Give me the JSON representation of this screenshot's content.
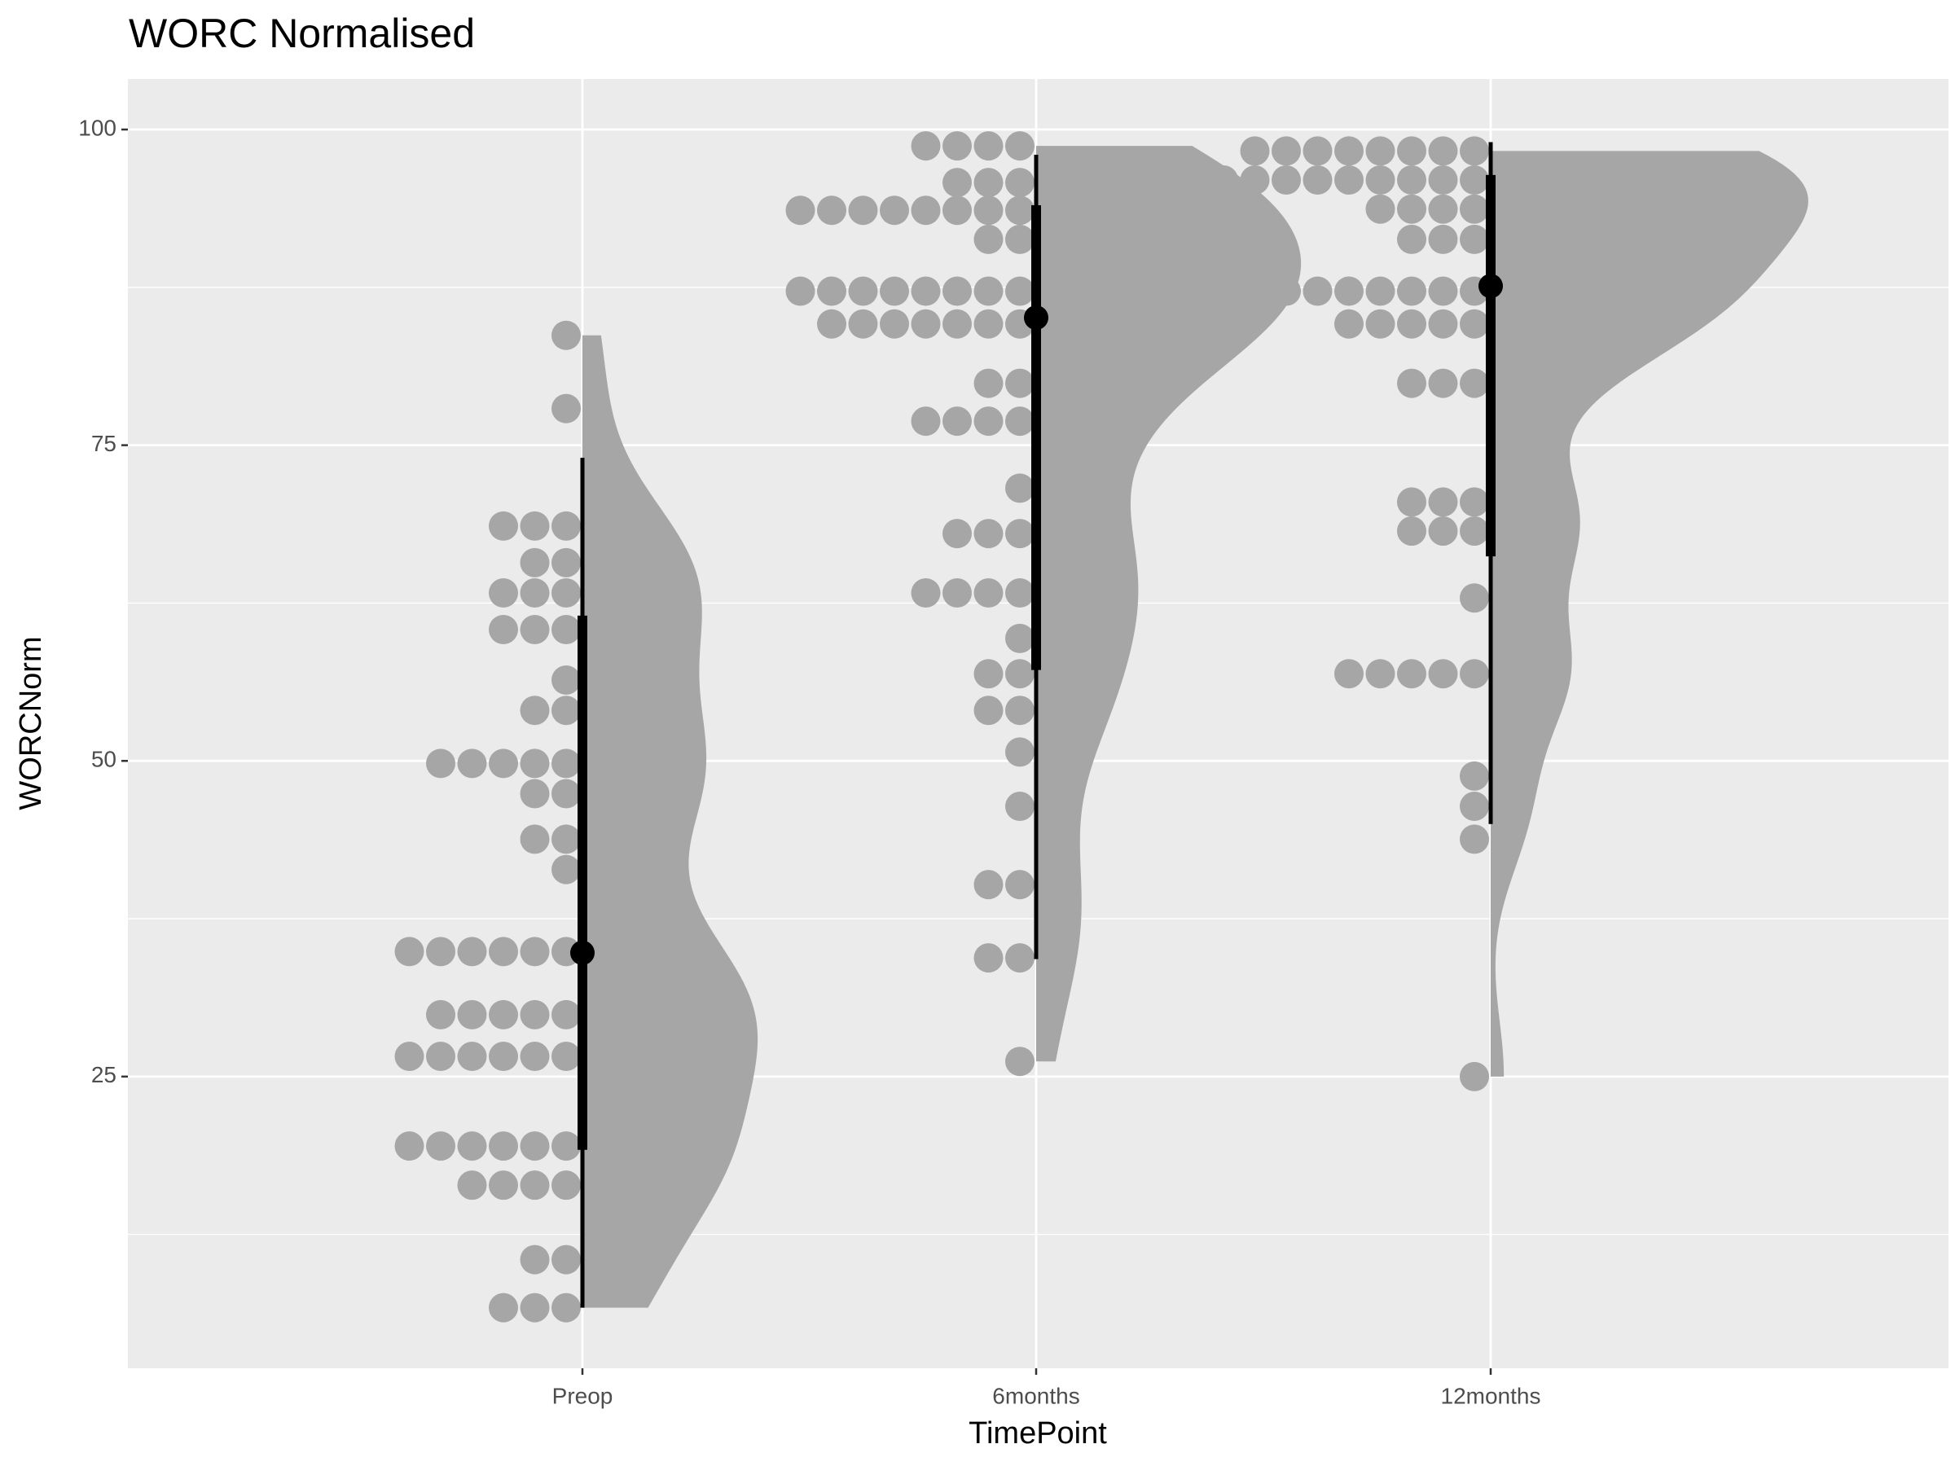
{
  "chart_data": {
    "type": "raincloud",
    "title": "WORC Normalised",
    "x_label": "TimePoint",
    "y_label": "WORCNorm",
    "categories": [
      "Preop",
      "6months",
      "12months"
    ],
    "groups": [
      {
        "values": [
          83.7,
          77.9,
          68.6,
          68.6,
          68.6,
          65.7,
          65.7,
          63.3,
          63.3,
          63.3,
          60.4,
          60.4,
          60.4,
          56.4,
          54.0,
          54.0,
          49.8,
          49.8,
          49.8,
          49.8,
          49.8,
          47.4,
          47.4,
          43.8,
          43.8,
          41.4,
          34.9,
          34.9,
          34.9,
          34.9,
          34.9,
          34.9,
          29.9,
          29.9,
          29.9,
          29.9,
          29.9,
          26.6,
          26.6,
          26.6,
          26.6,
          26.6,
          26.6,
          19.5,
          19.5,
          19.5,
          19.5,
          19.5,
          19.5,
          16.4,
          16.4,
          16.4,
          16.4,
          10.5,
          10.5,
          6.7,
          6.7,
          6.7
        ],
        "median": 34.8,
        "interval_66": [
          19.2,
          61.5
        ],
        "interval_95": [
          6.7,
          74.0
        ]
      },
      {
        "values": [
          98.7,
          98.7,
          98.7,
          98.7,
          95.8,
          95.8,
          95.8,
          93.6,
          93.6,
          93.6,
          93.6,
          93.6,
          93.6,
          93.6,
          93.6,
          91.3,
          91.3,
          87.2,
          87.2,
          87.2,
          87.2,
          87.2,
          87.2,
          87.2,
          87.2,
          84.6,
          84.6,
          84.6,
          84.6,
          84.6,
          84.6,
          84.6,
          79.9,
          79.9,
          76.9,
          76.9,
          76.9,
          76.9,
          71.6,
          68.0,
          68.0,
          68.0,
          63.3,
          63.3,
          63.3,
          63.3,
          59.7,
          56.9,
          56.9,
          54.0,
          54.0,
          50.7,
          46.4,
          40.2,
          40.2,
          34.4,
          34.4,
          26.2
        ],
        "median": 85.1,
        "interval_66": [
          57.2,
          94.0
        ],
        "interval_95": [
          34.3,
          98.0
        ]
      },
      {
        "values": [
          98.3,
          98.3,
          98.3,
          98.3,
          98.3,
          98.3,
          98.3,
          98.3,
          96.0,
          96.0,
          96.0,
          96.0,
          96.0,
          96.0,
          96.0,
          96.0,
          96.0,
          93.7,
          93.7,
          93.7,
          93.7,
          91.3,
          91.3,
          91.3,
          87.2,
          87.2,
          87.2,
          87.2,
          87.2,
          87.2,
          87.2,
          87.2,
          84.6,
          84.6,
          84.6,
          84.6,
          84.6,
          79.9,
          79.9,
          79.9,
          70.5,
          70.5,
          70.5,
          68.2,
          68.2,
          68.2,
          62.9,
          56.9,
          56.9,
          56.9,
          56.9,
          56.9,
          48.8,
          46.4,
          43.8,
          25.0
        ],
        "median": 87.6,
        "interval_66": [
          66.2,
          96.4
        ],
        "interval_95": [
          45.0,
          99.0
        ]
      }
    ],
    "color": "#a6a6a6",
    "point_color": "#000000",
    "ylim": [
      1.9,
      104.0
    ],
    "yticks": [
      25,
      50,
      75,
      100
    ],
    "minor_yticks": [
      12.5,
      37.5,
      62.5,
      87.5
    ],
    "grid": true
  }
}
